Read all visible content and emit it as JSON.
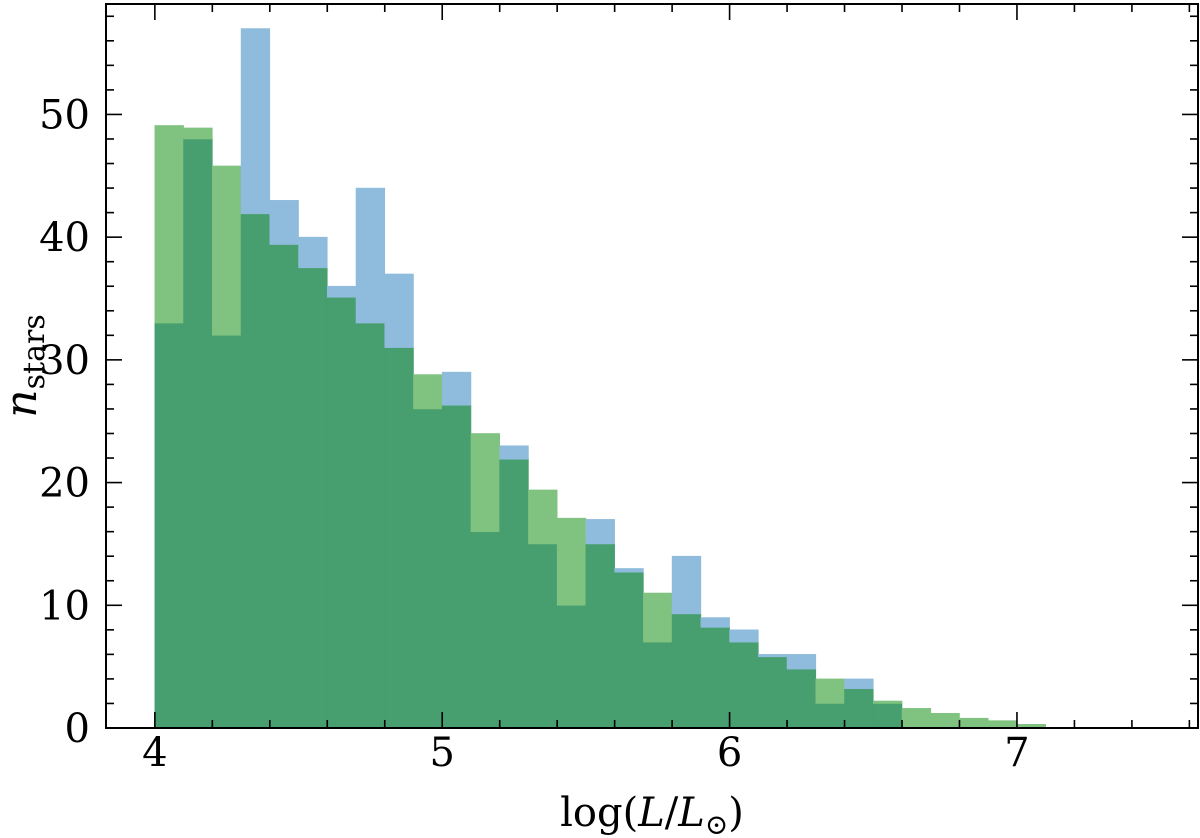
{
  "chart_data": {
    "type": "bar",
    "xlabel": {
      "pre": "log(",
      "L1": "L",
      "slash": "/",
      "L2": "L",
      "sub": "⊙",
      "post": ")"
    },
    "ylabel": {
      "main": "n",
      "sub": "stars"
    },
    "xlim": [
      3.83,
      7.63
    ],
    "ylim": [
      0,
      59
    ],
    "xticks": [
      4,
      5,
      6,
      7
    ],
    "xtick_labels": [
      "4",
      "5",
      "6",
      "7"
    ],
    "yticks": [
      0,
      10,
      20,
      30,
      40,
      50
    ],
    "ytick_labels": [
      "0",
      "10",
      "20",
      "30",
      "40",
      "50"
    ],
    "bin_edges": [
      4.0,
      4.1,
      4.2,
      4.3,
      4.4,
      4.5,
      4.6,
      4.7,
      4.8,
      4.9,
      5.0,
      5.1,
      5.2,
      5.3,
      5.4,
      5.5,
      5.6,
      5.7,
      5.8,
      5.9,
      6.0,
      6.1,
      6.2,
      6.3,
      6.4,
      6.5,
      6.6,
      6.7,
      6.8,
      6.9,
      7.0,
      7.1
    ],
    "series": [
      {
        "color": "#8fbcdc",
        "values": [
          33,
          48,
          32,
          57,
          43,
          40,
          36,
          44,
          37,
          26,
          29,
          16,
          23,
          15,
          10,
          17,
          13,
          7,
          14,
          9,
          8,
          6,
          6,
          2,
          4,
          2,
          0,
          0,
          0,
          0,
          0
        ]
      },
      {
        "color": "#80c280",
        "values": [
          49.1,
          48.9,
          45.8,
          41.9,
          39.4,
          37.5,
          35.1,
          33.0,
          31.0,
          28.8,
          26.3,
          24.0,
          21.9,
          19.4,
          17.1,
          15.0,
          12.7,
          11.0,
          9.3,
          8.2,
          7.0,
          5.8,
          4.8,
          4.0,
          3.2,
          2.2,
          1.6,
          1.2,
          0.8,
          0.6,
          0.3
        ]
      }
    ],
    "overlap_color": "#479e6e",
    "grid": false,
    "legend": "none"
  }
}
